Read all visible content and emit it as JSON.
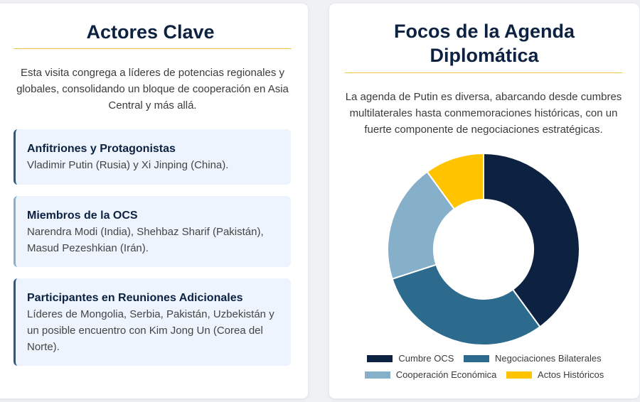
{
  "left": {
    "title": "Actores Clave",
    "intro": "Esta visita congrega a líderes de potencias regionales y globales, consolidando un bloque de cooperación en Asia Central y más allá.",
    "actors": [
      {
        "title": "Anfitriones y Protagonistas",
        "text": "Vladimir Putin (Rusia) y Xi Jinping (China)."
      },
      {
        "title": "Miembros de la OCS",
        "text": "Narendra Modi (India), Shehbaz Sharif (Pakistán), Masud Pezeshkian (Irán)."
      },
      {
        "title": "Participantes en Reuniones Adicionales",
        "text": "Líderes de Mongolia, Serbia, Pakistán, Uzbekistán y un posible encuentro con Kim Jong Un (Corea del Norte)."
      }
    ]
  },
  "right": {
    "title_line1": "Focos de la Agenda",
    "title_line2": "Diplomática",
    "intro": "La agenda de Putin es diversa, abarcando desde cumbres multilaterales hasta conmemoraciones históricas, con un fuerte componente de negociaciones estratégicas."
  },
  "chart_data": {
    "type": "pie",
    "donut": true,
    "categories": [
      "Cumbre OCS",
      "Negociaciones Bilaterales",
      "Cooperación Económica",
      "Actos Históricos"
    ],
    "values": [
      40,
      30,
      20,
      10
    ],
    "colors": [
      "#0d2240",
      "#2c6a8e",
      "#86afc9",
      "#ffc300"
    ],
    "legend": "bottom"
  }
}
